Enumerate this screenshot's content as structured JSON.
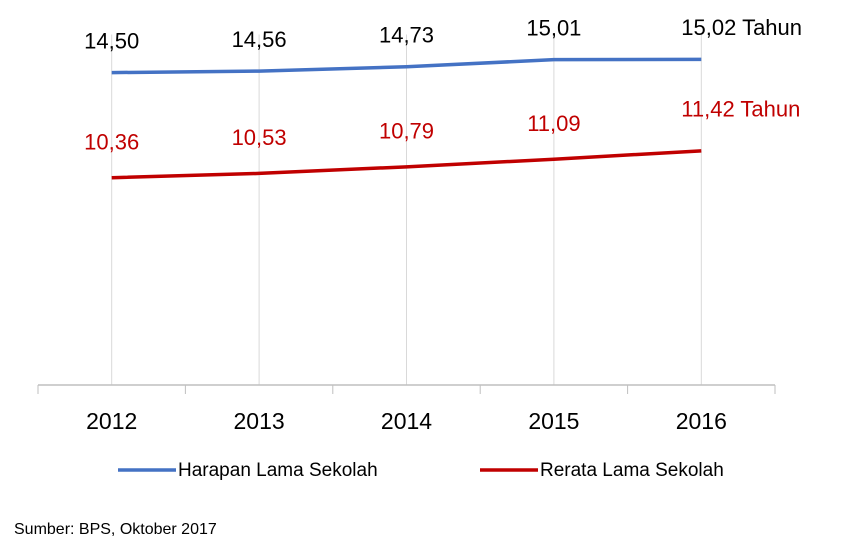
{
  "chart_data": {
    "type": "line",
    "categories": [
      "2012",
      "2013",
      "2014",
      "2015",
      "2016"
    ],
    "series": [
      {
        "name": "Harapan Lama Sekolah",
        "color": "#4472c4",
        "label_color": "#000000",
        "values": [
          14.5,
          14.56,
          14.73,
          15.01,
          15.02
        ],
        "value_labels": [
          "14,50",
          "14,56",
          "14,73",
          "15,01",
          "15,02 Tahun"
        ]
      },
      {
        "name": "Rerata Lama Sekolah",
        "color": "#c00000",
        "label_color": "#c00000",
        "values": [
          10.36,
          10.53,
          10.79,
          11.09,
          11.42
        ],
        "value_labels": [
          "10,36",
          "10,53",
          "10,79",
          "11,09",
          "11,42 Tahun"
        ]
      }
    ],
    "ylim": [
      2.2,
      16
    ],
    "xgrid": true,
    "source": "Sumber: BPS, Oktober 2017"
  }
}
